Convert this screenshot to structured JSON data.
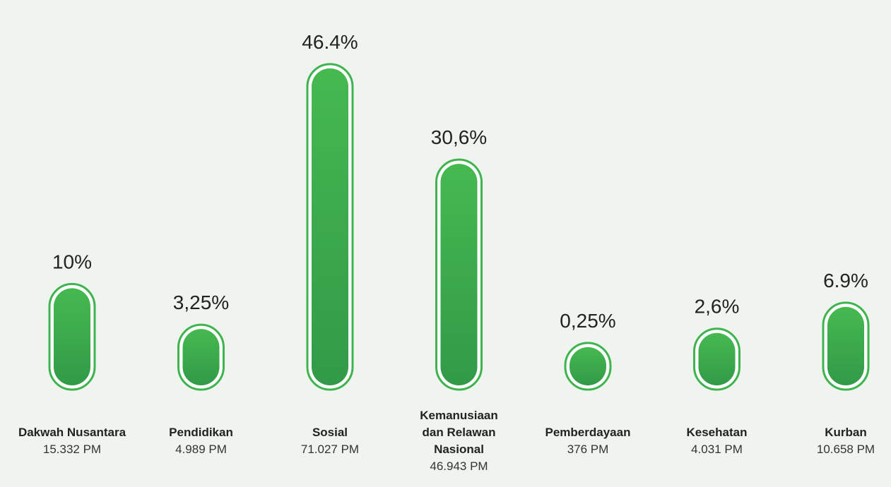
{
  "chart_data": {
    "type": "bar",
    "categories": [
      "Dakwah Nusantara",
      "Pendidikan",
      "Sosial",
      "Kemanusiaan dan Relawan Nasional",
      "Pemberdayaan",
      "Kesehatan",
      "Kurban"
    ],
    "values": [
      10,
      3.25,
      46.4,
      30.6,
      0.25,
      2.6,
      6.9
    ],
    "value_labels": [
      "10%",
      "3,25%",
      "46.4%",
      "30,6%",
      "0,25%",
      "2,6%",
      "6.9%"
    ],
    "sublabels": [
      "15.332 PM",
      "4.989 PM",
      "71.027 PM",
      "46.943 PM",
      "376 PM",
      "4.031 PM",
      "10.658 PM"
    ],
    "color": "#3fb34f",
    "ylim": [
      0,
      50
    ]
  }
}
